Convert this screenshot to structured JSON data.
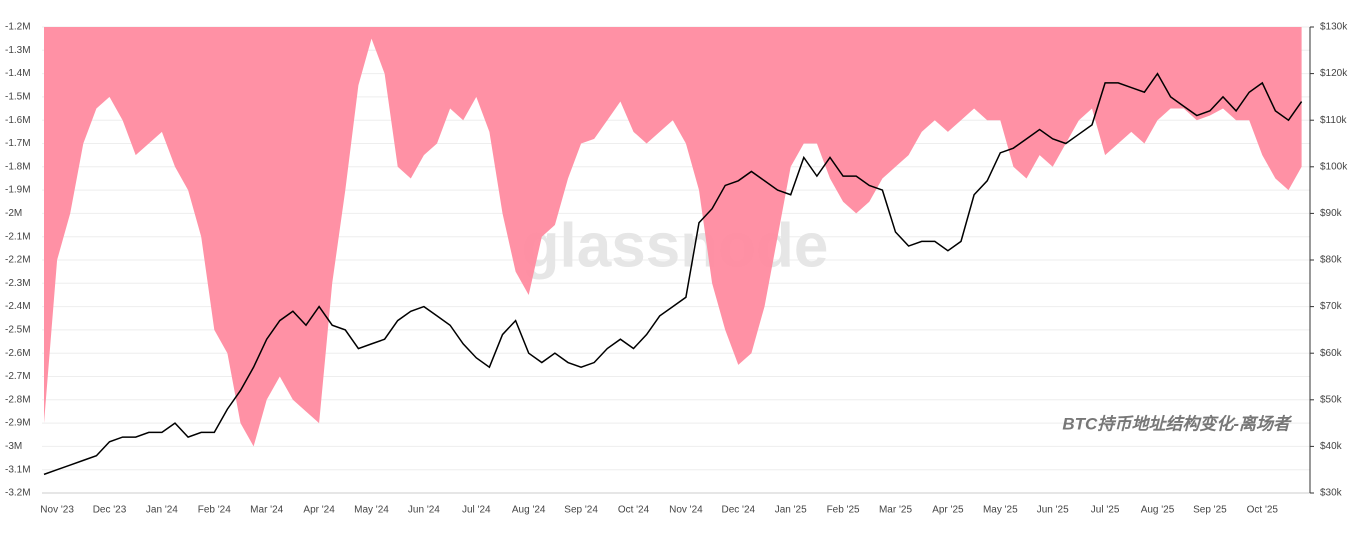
{
  "chart_data": {
    "type": "area_line",
    "annotation": "BTC持币地址结构变化-离场者",
    "watermark": "glassnode",
    "categories": [
      null,
      "Nov '23",
      null,
      null,
      null,
      "Dec '23",
      null,
      null,
      null,
      "Jan '24",
      null,
      null,
      null,
      "Feb '24",
      null,
      null,
      null,
      "Mar '24",
      null,
      null,
      null,
      "Apr '24",
      null,
      null,
      null,
      "May '24",
      null,
      null,
      null,
      "Jun '24",
      null,
      null,
      null,
      "Jul '24",
      null,
      null,
      null,
      "Aug '24",
      null,
      null,
      null,
      "Sep '24",
      null,
      null,
      null,
      "Oct '24",
      null,
      null,
      null,
      "Nov '24",
      null,
      null,
      null,
      "Dec '24",
      null,
      null,
      null,
      "Jan '25",
      null,
      null,
      null,
      "Feb '25",
      null,
      null,
      null,
      "Mar '25",
      null,
      null,
      null,
      "Apr '25",
      null,
      null,
      null,
      "May '25",
      null,
      null,
      null,
      "Jun '25",
      null,
      null,
      null,
      "Jul '25",
      null,
      null,
      null,
      "Aug '25",
      null,
      null,
      null,
      "Sep '25",
      null,
      null,
      null,
      "Oct '25",
      null,
      null,
      null
    ],
    "series": [
      {
        "color": "#ff8ba0",
        "values": [
          -2900000,
          -2200000,
          -2000000,
          -1700000,
          -1550000,
          -1500000,
          -1600000,
          -1750000,
          -1700000,
          -1650000,
          -1800000,
          -1900000,
          -2100000,
          -2500000,
          -2600000,
          -2900000,
          -3000000,
          -2800000,
          -2700000,
          -2800000,
          -2850000,
          -2900000,
          -2300000,
          -1900000,
          -1450000,
          -1250000,
          -1400000,
          -1800000,
          -1850000,
          -1750000,
          -1700000,
          -1550000,
          -1600000,
          -1500000,
          -1650000,
          -2000000,
          -2250000,
          -2350000,
          -2100000,
          -2050000,
          -1850000,
          -1700000,
          -1680000,
          -1600000,
          -1520000,
          -1650000,
          -1700000,
          -1650000,
          -1600000,
          -1700000,
          -1900000,
          -2300000,
          -2500000,
          -2650000,
          -2600000,
          -2400000,
          -2100000,
          -1800000,
          -1700000,
          -1700000,
          -1850000,
          -1950000,
          -2000000,
          -1950000,
          -1850000,
          -1800000,
          -1750000,
          -1650000,
          -1600000,
          -1650000,
          -1600000,
          -1550000,
          -1600000,
          -1600000,
          -1800000,
          -1850000,
          -1750000,
          -1800000,
          -1700000,
          -1600000,
          -1550000,
          -1750000,
          -1700000,
          -1650000,
          -1700000,
          -1600000,
          -1550000,
          -1550000,
          -1600000,
          -1580000,
          -1550000,
          -1600000,
          -1600000,
          -1750000,
          -1850000,
          -1900000,
          -1800000
        ]
      },
      {
        "color": "#000000",
        "axis": "y2",
        "values": [
          34000,
          35000,
          36000,
          37000,
          38000,
          41000,
          42000,
          42000,
          43000,
          43000,
          45000,
          42000,
          43000,
          43000,
          48000,
          52000,
          57000,
          63000,
          67000,
          69000,
          66000,
          70000,
          66000,
          65000,
          61000,
          62000,
          63000,
          67000,
          69000,
          70000,
          68000,
          66000,
          62000,
          59000,
          57000,
          64000,
          67000,
          60000,
          58000,
          60000,
          58000,
          57000,
          58000,
          61000,
          63000,
          61000,
          64000,
          68000,
          70000,
          72000,
          88000,
          91000,
          96000,
          97000,
          99000,
          97000,
          95000,
          94000,
          102000,
          98000,
          102000,
          98000,
          98000,
          96000,
          95000,
          86000,
          83000,
          84000,
          84000,
          82000,
          84000,
          94000,
          97000,
          103000,
          104000,
          106000,
          108000,
          106000,
          105000,
          107000,
          109000,
          118000,
          118000,
          117000,
          116000,
          120000,
          115000,
          113000,
          111000,
          112000,
          115000,
          112000,
          116000,
          118000,
          112000,
          110000,
          114000
        ]
      }
    ],
    "ylim": [
      -3200000,
      -1200000
    ],
    "yticks": [
      {
        "value": -1200000,
        "label": "-1.2M"
      },
      {
        "value": -1300000,
        "label": "-1.3M"
      },
      {
        "value": -1400000,
        "label": "-1.4M"
      },
      {
        "value": -1500000,
        "label": "-1.5M"
      },
      {
        "value": -1600000,
        "label": "-1.6M"
      },
      {
        "value": -1700000,
        "label": "-1.7M"
      },
      {
        "value": -1800000,
        "label": "-1.8M"
      },
      {
        "value": -1900000,
        "label": "-1.9M"
      },
      {
        "value": -2000000,
        "label": "-2M"
      },
      {
        "value": -2100000,
        "label": "-2.1M"
      },
      {
        "value": -2200000,
        "label": "-2.2M"
      },
      {
        "value": -2300000,
        "label": "-2.3M"
      },
      {
        "value": -2400000,
        "label": "-2.4M"
      },
      {
        "value": -2500000,
        "label": "-2.5M"
      },
      {
        "value": -2600000,
        "label": "-2.6M"
      },
      {
        "value": -2700000,
        "label": "-2.7M"
      },
      {
        "value": -2800000,
        "label": "-2.8M"
      },
      {
        "value": -2900000,
        "label": "-2.9M"
      },
      {
        "value": -3000000,
        "label": "-3M"
      },
      {
        "value": -3100000,
        "label": "-3.1M"
      },
      {
        "value": -3200000,
        "label": "-3.2M"
      }
    ],
    "y2lim": [
      30000,
      130000
    ],
    "y2ticks": [
      {
        "value": 30000,
        "label": "$30k"
      },
      {
        "value": 40000,
        "label": "$40k"
      },
      {
        "value": 50000,
        "label": "$50k"
      },
      {
        "value": 60000,
        "label": "$60k"
      },
      {
        "value": 70000,
        "label": "$70k"
      },
      {
        "value": 80000,
        "label": "$80k"
      },
      {
        "value": 90000,
        "label": "$90k"
      },
      {
        "value": 100000,
        "label": "$100k"
      },
      {
        "value": 110000,
        "label": "$110k"
      },
      {
        "value": 120000,
        "label": "$120k"
      },
      {
        "value": 130000,
        "label": "$130k"
      }
    ],
    "grid": true
  }
}
